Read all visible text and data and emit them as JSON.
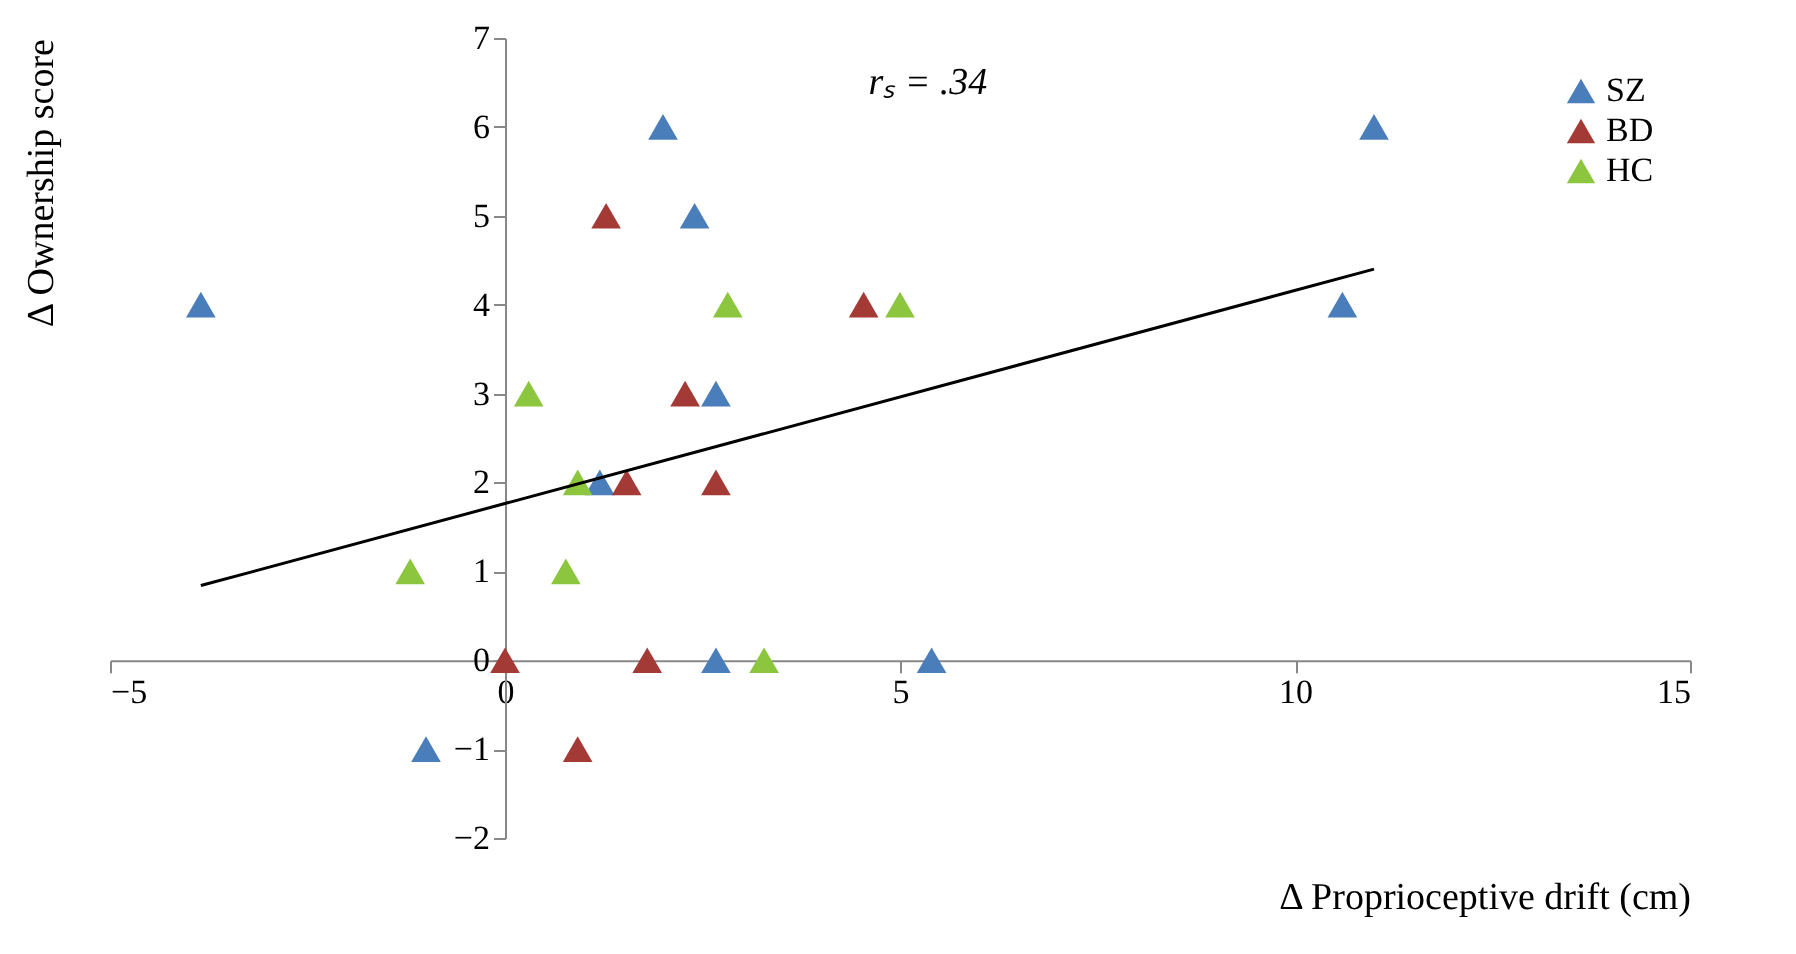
{
  "chart_data": {
    "type": "scatter",
    "xlabel": "Δ Proprioceptive drift (cm)",
    "ylabel": "Δ Ownership score",
    "annotations": [
      "rₛ = .34"
    ],
    "marker": "triangle",
    "legend": "top right",
    "grid": false,
    "xlim": [
      -5,
      15
    ],
    "xticks": [
      -5,
      0,
      5,
      10,
      15
    ],
    "ylim": [
      -2,
      7
    ],
    "yticks": [
      -2,
      -1,
      0,
      1,
      2,
      3,
      4,
      5,
      6,
      7
    ],
    "series": [
      {
        "name": "SZ",
        "color": "#4a7ebb",
        "x": [
          -3.85,
          2.0,
          2.4,
          2.67,
          1.2,
          -1.0,
          2.67,
          5.4,
          10.6,
          11.0
        ],
        "values": [
          4,
          6,
          5,
          3,
          2,
          -1,
          0,
          0,
          4,
          6
        ]
      },
      {
        "name": "BD",
        "color": "#a33a36",
        "x": [
          1.28,
          4.54,
          2.28,
          1.54,
          2.67,
          0,
          1.8,
          0.92
        ],
        "values": [
          5,
          4,
          3,
          2,
          2,
          0,
          0,
          -1
        ]
      },
      {
        "name": "HC",
        "color": "#8cc63f",
        "x": [
          2.82,
          5.0,
          0.3,
          0.92,
          -1.2,
          0.77,
          3.28
        ],
        "values": [
          4,
          4,
          3,
          2,
          1,
          1,
          0
        ]
      },
      {
        "type": "line",
        "marker": "none",
        "color": "#000000",
        "x": [
          -3.85,
          11.0
        ],
        "values": [
          0.84,
          4.4
        ]
      }
    ]
  }
}
